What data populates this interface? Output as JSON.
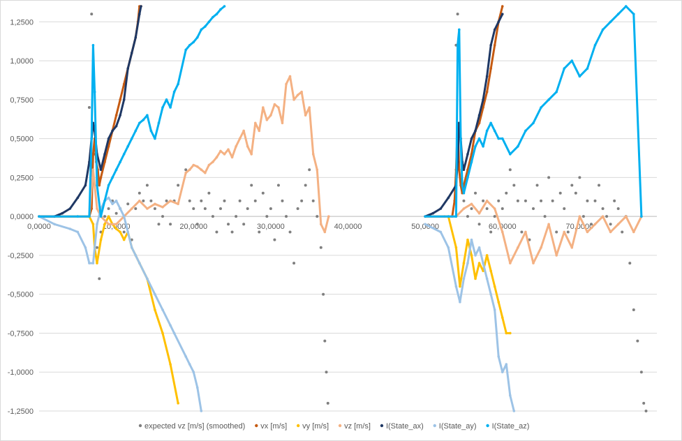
{
  "chart_data": {
    "type": "scatter",
    "title": "",
    "xlabel": "",
    "ylabel": "",
    "xlim": [
      0,
      80000
    ],
    "ylim": [
      -1.25,
      1.35
    ],
    "grid": true,
    "legend_position": "bottom",
    "x_ticks": [
      0,
      10000,
      20000,
      30000,
      40000,
      50000,
      60000,
      70000
    ],
    "x_tick_labels": [
      "0,0000",
      "10,0000",
      "20,0000",
      "30,0000",
      "40,0000",
      "50,0000",
      "60,0000",
      "70,0000"
    ],
    "y_ticks": [
      1.25,
      1.0,
      0.75,
      0.5,
      0.25,
      0,
      -0.25,
      -0.5,
      -0.75,
      -1.0,
      -1.25
    ],
    "y_tick_labels": [
      "1,2500",
      "1,0000",
      "0,7500",
      "0,5000",
      "0,2500",
      "0,0000",
      "-0,2500",
      "-0,5000",
      "-0,7500",
      "-1,0000",
      "-1,2500"
    ],
    "series": [
      {
        "name": "expected vz [m/s] (smoothed)",
        "color": "#7f7f7f",
        "style": "scatter",
        "x": [
          6500,
          6800,
          7000,
          7200,
          7500,
          7800,
          8000,
          8500,
          9000,
          9500,
          10000,
          10500,
          11000,
          11500,
          12000,
          12500,
          13000,
          13500,
          14000,
          14500,
          15000,
          15500,
          16000,
          16500,
          17000,
          17500,
          18000,
          19000,
          19500,
          20000,
          20500,
          21000,
          21500,
          22000,
          22500,
          23000,
          23500,
          24000,
          24500,
          25000,
          25500,
          26000,
          26500,
          27000,
          27500,
          28000,
          28500,
          29000,
          29500,
          30000,
          30500,
          31000,
          31500,
          32000,
          32500,
          33000,
          33500,
          34000,
          34500,
          35000,
          35500,
          36000,
          36500,
          36800,
          37000,
          37200,
          37400,
          54000,
          54200,
          54400,
          54600,
          54800,
          55000,
          55500,
          56000,
          56500,
          57000,
          57500,
          58000,
          58500,
          59000,
          59500,
          60000,
          60500,
          61000,
          61500,
          62000,
          62500,
          63000,
          63500,
          64000,
          64500,
          65000,
          65500,
          66000,
          66500,
          67000,
          67500,
          68000,
          68500,
          69000,
          69500,
          70000,
          70500,
          71000,
          71500,
          72000,
          72500,
          73000,
          73500,
          74000,
          74500,
          75000,
          75500,
          76000,
          76500,
          77000,
          77500,
          78000,
          78300,
          78600
        ],
        "y": [
          0.7,
          1.3,
          0.9,
          0.4,
          -0.2,
          -0.4,
          -0.1,
          0.0,
          0.05,
          0.1,
          0.02,
          0.05,
          -0.1,
          0.08,
          -0.15,
          0.05,
          0.15,
          0.1,
          0.2,
          0.1,
          0.05,
          -0.05,
          0.0,
          0.1,
          -0.05,
          0.1,
          0.2,
          0.3,
          0.1,
          0.05,
          -0.05,
          0.1,
          0.05,
          0.15,
          0.0,
          -0.1,
          0.05,
          0.1,
          -0.05,
          -0.1,
          0.0,
          0.1,
          -0.05,
          0.05,
          0.2,
          0.1,
          -0.1,
          0.15,
          0.0,
          0.05,
          -0.15,
          0.2,
          0.1,
          0.0,
          -0.1,
          -0.3,
          0.05,
          0.1,
          0.2,
          0.3,
          0.1,
          0.0,
          -0.2,
          -0.5,
          -0.8,
          -1.0,
          -1.2,
          1.1,
          1.3,
          1.0,
          0.5,
          0.3,
          0.1,
          0.0,
          0.05,
          0.15,
          -0.05,
          0.1,
          0.05,
          -0.1,
          0.0,
          0.1,
          0.05,
          0.15,
          0.3,
          0.2,
          0.1,
          -0.1,
          0.1,
          -0.15,
          0.05,
          0.2,
          0.1,
          0.0,
          0.25,
          0.1,
          -0.1,
          0.15,
          0.05,
          -0.1,
          0.2,
          0.15,
          0.25,
          0.0,
          0.1,
          -0.05,
          0.1,
          0.2,
          0.05,
          0.0,
          -0.05,
          0.1,
          0.05,
          -0.1,
          0.0,
          -0.3,
          -0.6,
          -0.8,
          -1.0,
          -1.2,
          -1.25
        ]
      },
      {
        "name": "vx [m/s]",
        "color": "#c55a11",
        "style": "line",
        "x": [
          0,
          5000,
          6500,
          6800,
          7000,
          7200,
          7400,
          7600,
          7800,
          8000,
          8500,
          9000,
          9500,
          10000,
          10500,
          11000,
          11500,
          12000,
          12500,
          12800,
          13000,
          13200,
          50000,
          52500,
          53500,
          53800,
          54000,
          54200,
          54400,
          54600,
          54800,
          55000,
          55500,
          56000,
          56500,
          57000,
          57500,
          58000,
          58500,
          59000,
          59500,
          60000
        ],
        "y": [
          0,
          0,
          0,
          0.05,
          0.4,
          0.5,
          0.35,
          0.3,
          0.2,
          0.25,
          0.35,
          0.45,
          0.55,
          0.65,
          0.75,
          0.85,
          0.95,
          1.05,
          1.15,
          1.25,
          1.35,
          1.35,
          0,
          0,
          0,
          0.1,
          0.3,
          0.6,
          0.3,
          0.2,
          0.15,
          0.2,
          0.3,
          0.4,
          0.55,
          0.6,
          0.7,
          0.8,
          0.95,
          1.1,
          1.25,
          1.35
        ]
      },
      {
        "name": "vy [m/s]",
        "color": "#ffc000",
        "style": "line",
        "x": [
          0,
          5000,
          6500,
          7000,
          7200,
          7500,
          8000,
          8500,
          9000,
          9500,
          10000,
          10500,
          11000,
          11500,
          12000,
          12500,
          13000,
          14000,
          15000,
          16000,
          17000,
          18000,
          50000,
          53000,
          54000,
          54500,
          55000,
          55500,
          56000,
          56500,
          57000,
          57500,
          58000,
          58500,
          59000,
          59500,
          60000,
          60500,
          61000
        ],
        "y": [
          0,
          0,
          0,
          -0.05,
          -0.2,
          -0.3,
          -0.15,
          -0.05,
          0.0,
          -0.05,
          -0.08,
          -0.1,
          -0.15,
          -0.1,
          -0.2,
          -0.25,
          -0.3,
          -0.4,
          -0.6,
          -0.75,
          -0.95,
          -1.2,
          0,
          0,
          -0.2,
          -0.45,
          -0.3,
          -0.15,
          -0.25,
          -0.4,
          -0.3,
          -0.35,
          -0.25,
          -0.35,
          -0.45,
          -0.55,
          -0.65,
          -0.75,
          -0.75
        ]
      },
      {
        "name": "vz [m/s]",
        "color": "#f4b183",
        "style": "line",
        "x": [
          0,
          5000,
          6500,
          7000,
          7500,
          8000,
          9000,
          10000,
          11000,
          12000,
          13000,
          14000,
          15000,
          16000,
          17000,
          18000,
          19000,
          19500,
          20000,
          20500,
          21000,
          21500,
          22000,
          22500,
          23000,
          23500,
          24000,
          24500,
          25000,
          25500,
          26000,
          26500,
          27000,
          27500,
          28000,
          28500,
          29000,
          29500,
          30000,
          30500,
          31000,
          31500,
          32000,
          32500,
          33000,
          33500,
          34000,
          34500,
          35000,
          35500,
          36000,
          36500,
          37000,
          37500,
          50000,
          53000,
          54000,
          55000,
          56000,
          57000,
          58000,
          59000,
          60000,
          61000,
          62000,
          63000,
          64000,
          65000,
          66000,
          67000,
          68000,
          69000,
          70000,
          71000,
          72000,
          73000,
          74000,
          75000,
          76000,
          77000,
          78000
        ],
        "y": [
          0,
          0,
          0,
          0.3,
          0.05,
          0.0,
          -0.05,
          -0.05,
          0.0,
          0.05,
          0.1,
          0.05,
          0.08,
          0.06,
          0.1,
          0.08,
          0.28,
          0.3,
          0.33,
          0.32,
          0.3,
          0.28,
          0.33,
          0.35,
          0.38,
          0.42,
          0.4,
          0.43,
          0.38,
          0.45,
          0.5,
          0.55,
          0.45,
          0.4,
          0.6,
          0.55,
          0.7,
          0.62,
          0.65,
          0.72,
          0.7,
          0.6,
          0.85,
          0.9,
          0.75,
          0.78,
          0.8,
          0.65,
          0.7,
          0.4,
          0.3,
          -0.05,
          -0.1,
          0,
          0,
          0,
          0,
          0.05,
          0.08,
          0.02,
          0.1,
          0.05,
          -0.1,
          -0.3,
          -0.2,
          -0.1,
          -0.3,
          -0.2,
          -0.05,
          -0.25,
          -0.1,
          -0.2,
          0.0,
          -0.1,
          -0.05,
          0.0,
          -0.1,
          -0.05,
          0.0,
          -0.1,
          0.0
        ]
      },
      {
        "name": "I(State_ax)",
        "color": "#1f3864",
        "style": "line",
        "x": [
          0,
          2000,
          3000,
          4000,
          5000,
          6000,
          6500,
          6800,
          7000,
          7200,
          7500,
          8000,
          8500,
          9000,
          9500,
          10000,
          10500,
          11000,
          11500,
          12000,
          12500,
          13000,
          13200,
          50000,
          51000,
          52000,
          53000,
          54000,
          54200,
          54400,
          54600,
          54800,
          55000,
          55500,
          56000,
          56500,
          57000,
          57500,
          58000,
          58500,
          59000,
          59500,
          60000
        ],
        "y": [
          0,
          0,
          0.02,
          0.05,
          0.12,
          0.2,
          0.35,
          0.5,
          0.6,
          0.55,
          0.4,
          0.3,
          0.4,
          0.5,
          0.55,
          0.58,
          0.65,
          0.75,
          0.95,
          1.05,
          1.15,
          1.3,
          1.35,
          0,
          0.02,
          0.05,
          0.12,
          0.2,
          0.35,
          0.6,
          0.5,
          0.35,
          0.3,
          0.4,
          0.5,
          0.55,
          0.65,
          0.75,
          0.9,
          1.1,
          1.2,
          1.25,
          1.3
        ]
      },
      {
        "name": "I(State_ay)",
        "color": "#9dc3e6",
        "style": "line",
        "x": [
          0,
          2000,
          4000,
          5000,
          6000,
          6500,
          7000,
          7500,
          8000,
          8500,
          9000,
          9500,
          10000,
          10500,
          11000,
          11500,
          12000,
          12500,
          13000,
          14000,
          15000,
          16000,
          17000,
          17500,
          19000,
          19500,
          20000,
          20500,
          21000,
          50000,
          52000,
          53000,
          54000,
          54500,
          55000,
          55500,
          56000,
          56500,
          57000,
          57500,
          58000,
          58500,
          59000,
          59500,
          60000,
          60500,
          61000,
          61500
        ],
        "y": [
          0,
          -0.05,
          -0.08,
          -0.1,
          -0.2,
          -0.3,
          -0.3,
          -0.05,
          0.05,
          0.1,
          0.12,
          0.08,
          0.1,
          0.05,
          0.0,
          -0.1,
          -0.2,
          -0.25,
          -0.3,
          -0.4,
          -0.5,
          -0.6,
          -0.7,
          -0.75,
          -0.9,
          -0.95,
          -1.0,
          -1.1,
          -1.25,
          -0.05,
          -0.1,
          -0.2,
          -0.45,
          -0.55,
          -0.4,
          -0.3,
          -0.15,
          -0.25,
          -0.2,
          -0.3,
          -0.4,
          -0.5,
          -0.6,
          -0.9,
          -1.0,
          -0.95,
          -1.15,
          -1.25
        ]
      },
      {
        "name": "I(State_az)",
        "color": "#00b0f0",
        "style": "line",
        "x": [
          0,
          5000,
          6500,
          6800,
          7000,
          7200,
          7500,
          8000,
          8500,
          9000,
          9500,
          10000,
          10500,
          11000,
          11500,
          12000,
          12500,
          13000,
          13500,
          14000,
          14500,
          15000,
          15500,
          16000,
          16500,
          17000,
          17500,
          18000,
          19000,
          19500,
          20000,
          20500,
          21000,
          21500,
          22000,
          22500,
          23000,
          23500,
          24000,
          50000,
          53000,
          54000,
          54200,
          54400,
          54600,
          54800,
          55000,
          55500,
          56000,
          56500,
          57000,
          57500,
          58000,
          58500,
          59000,
          59500,
          60000,
          61000,
          62000,
          63000,
          64000,
          65000,
          66000,
          67000,
          68000,
          69000,
          70000,
          71000,
          72000,
          73000,
          74000,
          75000,
          76000,
          77000,
          78000
        ],
        "y": [
          0,
          0,
          0,
          0.5,
          1.1,
          0.8,
          0.2,
          0.0,
          0.1,
          0.2,
          0.25,
          0.3,
          0.35,
          0.4,
          0.45,
          0.5,
          0.55,
          0.6,
          0.62,
          0.65,
          0.55,
          0.5,
          0.6,
          0.7,
          0.75,
          0.7,
          0.8,
          0.85,
          1.07,
          1.1,
          1.12,
          1.15,
          1.2,
          1.22,
          1.25,
          1.28,
          1.3,
          1.33,
          1.35,
          0,
          0,
          0,
          1.1,
          1.2,
          0.5,
          0.2,
          0.15,
          0.25,
          0.35,
          0.45,
          0.5,
          0.45,
          0.55,
          0.6,
          0.55,
          0.5,
          0.5,
          0.4,
          0.45,
          0.55,
          0.6,
          0.7,
          0.75,
          0.8,
          0.95,
          1.0,
          0.9,
          0.95,
          1.1,
          1.2,
          1.25,
          1.3,
          1.35,
          1.3,
          0
        ]
      }
    ]
  }
}
